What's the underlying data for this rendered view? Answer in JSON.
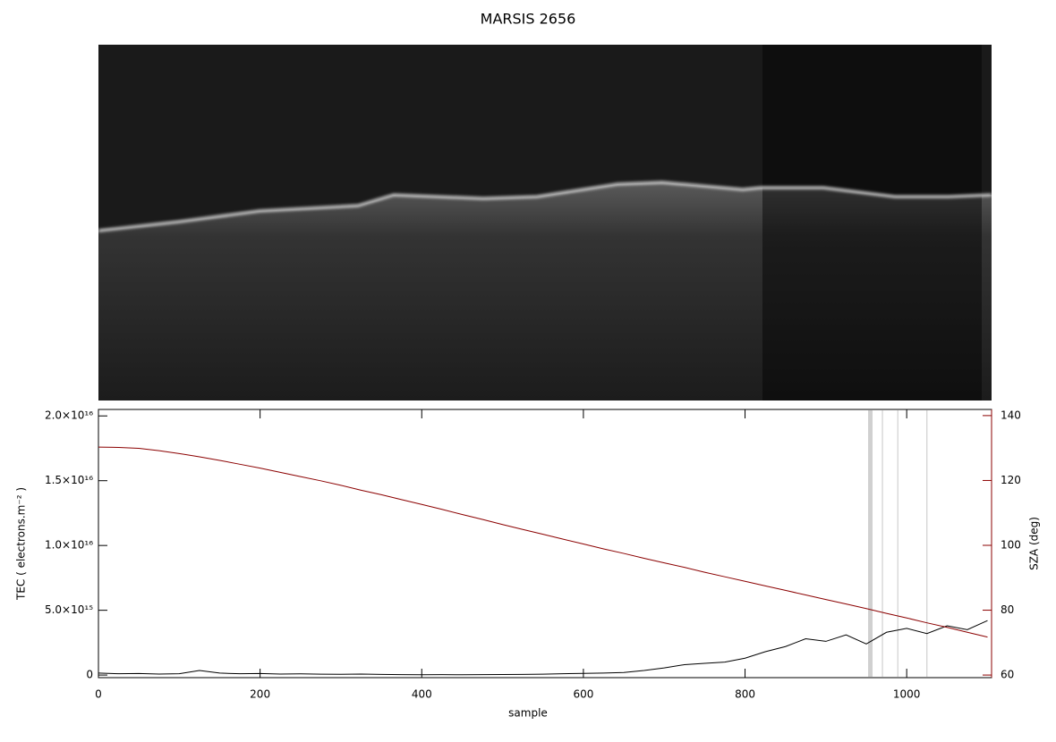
{
  "chart_data": {
    "type": "line",
    "title": "MARSIS 2656",
    "x_label": "sample",
    "y_label": "TEC ( electrons.m⁻² )",
    "y2_label": "SZA (deg)",
    "x": [
      0,
      25,
      50,
      75,
      100,
      125,
      150,
      175,
      200,
      225,
      250,
      275,
      300,
      325,
      350,
      375,
      400,
      425,
      450,
      475,
      500,
      525,
      550,
      575,
      600,
      625,
      650,
      675,
      700,
      725,
      750,
      775,
      800,
      825,
      850,
      875,
      900,
      925,
      950,
      975,
      1000,
      1025,
      1050,
      1075,
      1100
    ],
    "series": [
      {
        "color": "#000000",
        "values": [
          150000000000000.0,
          100000000000000.0,
          120000000000000.0,
          80000000000000.0,
          100000000000000.0,
          350000000000000.0,
          150000000000000.0,
          100000000000000.0,
          120000000000000.0,
          80000000000000.0,
          90000000000000.0,
          70000000000000.0,
          60000000000000.0,
          80000000000000.0,
          50000000000000.0,
          30000000000000.0,
          20000000000000.0,
          30000000000000.0,
          20000000000000.0,
          30000000000000.0,
          40000000000000.0,
          50000000000000.0,
          70000000000000.0,
          100000000000000.0,
          130000000000000.0,
          150000000000000.0,
          200000000000000.0,
          350000000000000.0,
          550000000000000.0,
          800000000000000.0,
          900000000000000.0,
          1000000000000000.0,
          1300000000000000.0,
          1800000000000000.0,
          2200000000000000.0,
          2800000000000000.0,
          2600000000000000.0,
          3100000000000000.0,
          2400000000000000.0,
          3300000000000000.0,
          3600000000000000.0,
          3200000000000000.0,
          3800000000000000.0,
          3500000000000000.0,
          4200000000000000.0
        ]
      },
      {
        "color": "#8b0000",
        "axis": "y2",
        "values": [
          130.3,
          130.2,
          129.9,
          129.2,
          128.3,
          127.3,
          126.2,
          125.0,
          123.8,
          122.5,
          121.2,
          119.9,
          118.5,
          117.0,
          115.6,
          114.1,
          112.6,
          111.1,
          109.5,
          108.0,
          106.4,
          104.9,
          103.4,
          101.9,
          100.4,
          98.9,
          97.5,
          96.0,
          94.6,
          93.2,
          91.7,
          90.3,
          88.9,
          87.5,
          86.1,
          84.7,
          83.3,
          81.9,
          80.5,
          79.0,
          77.6,
          76.1,
          74.7,
          73.2,
          71.7
        ]
      }
    ],
    "highlight_x": [
      955,
      970,
      989,
      1025
    ],
    "xlim": [
      0,
      1105
    ],
    "xticks": [
      0,
      200,
      400,
      600,
      800,
      1000
    ],
    "ylim": [
      -200000000000000.0,
      2.05e+16
    ],
    "yticks": [
      0,
      {
        "value": 5000000000000000.0,
        "label": "5.0×10¹⁵"
      },
      {
        "value": 1e+16,
        "label": "1.0×10¹⁶"
      },
      {
        "value": 1.5e+16,
        "label": "1.5×10¹⁶"
      },
      {
        "value": 2e+16,
        "label": "2.0×10¹⁶"
      }
    ],
    "y2lim": [
      59.2,
      141.9
    ],
    "y2ticks": [
      60,
      80,
      100,
      120,
      140
    ],
    "y2_color": "#8b0000"
  }
}
